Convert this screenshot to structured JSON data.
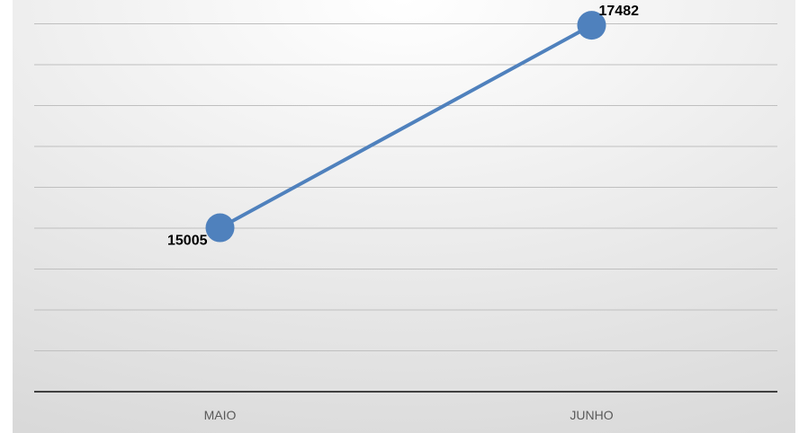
{
  "chart_data": {
    "type": "line",
    "categories": [
      "MAIO",
      "JUNHO"
    ],
    "series": [
      {
        "values": [
          15005,
          17482
        ]
      }
    ],
    "data_labels": [
      "15005",
      "17482"
    ],
    "ylim": [
      13000,
      18000
    ],
    "y_gridline_step": 500,
    "grid": true,
    "legend": "none",
    "colors": {
      "line": "#4f81bd",
      "marker": "#4f81bd",
      "gridline": "#bfbfbf",
      "axis": "#404040",
      "background_light": "#ffffff",
      "background_dark": "#d9d9d9"
    }
  }
}
